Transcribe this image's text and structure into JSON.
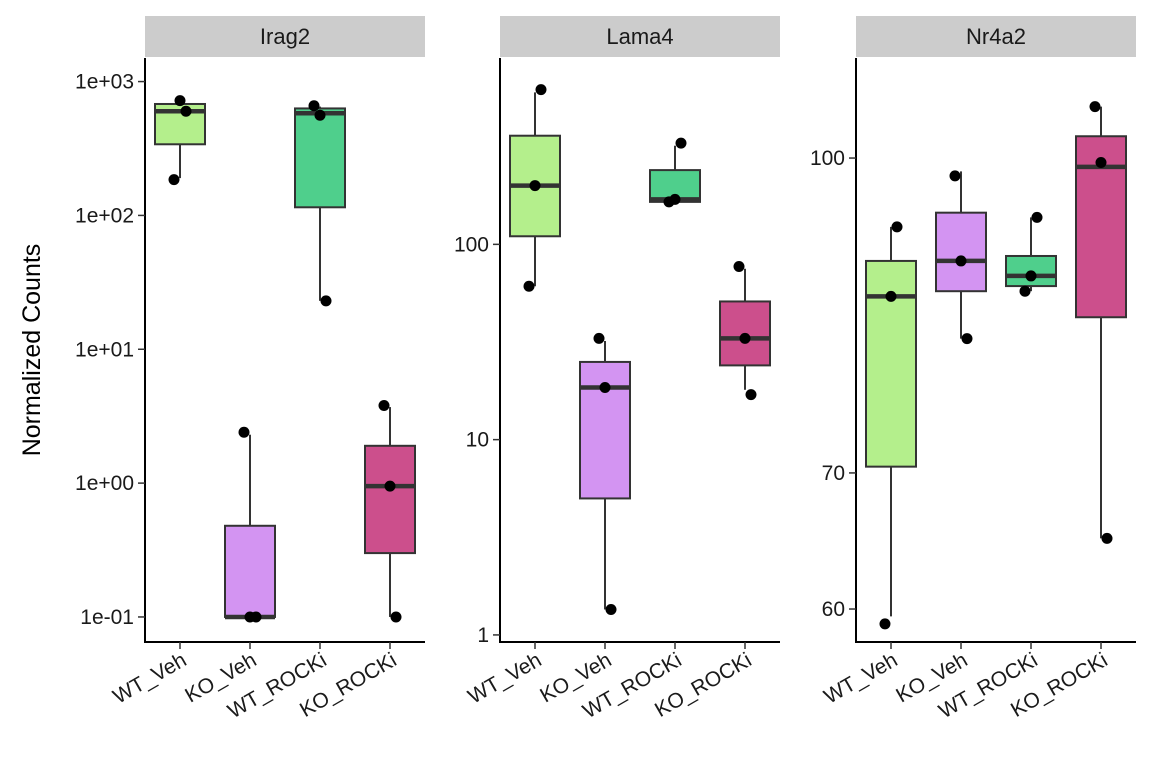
{
  "ylabel": "Normalized Counts",
  "categories": [
    "WT_Veh",
    "KO_Veh",
    "WT_ROCKi",
    "KO_ROCKi"
  ],
  "colors": {
    "WT_Veh": "#b4ef8c",
    "KO_Veh": "#d394f2",
    "WT_ROCKi": "#4fcf8c",
    "KO_ROCKi": "#cc4f8c",
    "strip": "#cccccc",
    "box_line": "#333333",
    "point": "#000000"
  },
  "chart_data": [
    {
      "type": "box",
      "title": "Irag2",
      "yscale": "log10",
      "ylim": [
        0.065,
        1500
      ],
      "yticks": [
        0.1,
        1,
        10,
        100,
        1000
      ],
      "yticklabels": [
        "1e-01",
        "1e+00",
        "1e+01",
        "1e+02",
        "1e+03"
      ],
      "groups": [
        {
          "name": "WT_Veh",
          "lower": 190,
          "q1": 340,
          "median": 600,
          "q3": 680,
          "upper": 720,
          "points": [
            600,
            720,
            185
          ]
        },
        {
          "name": "KO_Veh",
          "lower": 0.1,
          "q1": 0.1,
          "median": 0.1,
          "q3": 0.48,
          "upper": 2.3,
          "points": [
            2.4,
            0.1,
            0.1
          ]
        },
        {
          "name": "WT_ROCKi",
          "lower": 23,
          "q1": 115,
          "median": 580,
          "q3": 630,
          "upper": 650,
          "points": [
            23,
            560,
            660
          ]
        },
        {
          "name": "KO_ROCKi",
          "lower": 0.1,
          "q1": 0.3,
          "median": 0.95,
          "q3": 1.9,
          "upper": 3.7,
          "points": [
            3.8,
            0.95,
            0.1
          ]
        }
      ]
    },
    {
      "type": "box",
      "title": "Lama4",
      "yscale": "log10",
      "ylim": [
        0.92,
        900
      ],
      "yticks": [
        1,
        10,
        100
      ],
      "yticklabels": [
        "1",
        "10",
        "100"
      ],
      "groups": [
        {
          "name": "WT_Veh",
          "lower": 61,
          "q1": 110,
          "median": 200,
          "q3": 360,
          "upper": 600,
          "points": [
            620,
            200,
            61
          ]
        },
        {
          "name": "KO_Veh",
          "lower": 1.35,
          "q1": 5,
          "median": 18.5,
          "q3": 25,
          "upper": 32,
          "points": [
            33,
            18.5,
            1.35
          ]
        },
        {
          "name": "WT_ROCKi",
          "lower": 165,
          "q1": 165,
          "median": 170,
          "q3": 240,
          "upper": 320,
          "points": [
            330,
            170,
            165
          ]
        },
        {
          "name": "KO_ROCKi",
          "lower": 18,
          "q1": 24,
          "median": 33,
          "q3": 51,
          "upper": 75,
          "points": [
            77,
            33,
            17
          ]
        }
      ]
    },
    {
      "type": "box",
      "title": "Nr4a2",
      "yscale": "log10",
      "ylim": [
        57.8,
        112
      ],
      "yticks": [
        60,
        70,
        100
      ],
      "yticklabels": [
        "60",
        "70",
        "100"
      ],
      "groups": [
        {
          "name": "WT_Veh",
          "lower": 59.5,
          "q1": 70.5,
          "median": 85.5,
          "q3": 89,
          "upper": 92.5,
          "points": [
            92.5,
            85.5,
            59
          ]
        },
        {
          "name": "KO_Veh",
          "lower": 81.5,
          "q1": 86,
          "median": 89,
          "q3": 94,
          "upper": 98.5,
          "points": [
            98,
            89,
            81.5
          ]
        },
        {
          "name": "WT_ROCKi",
          "lower": 86,
          "q1": 86.5,
          "median": 87.5,
          "q3": 89.5,
          "upper": 93.5,
          "points": [
            93.5,
            87.5,
            86
          ]
        },
        {
          "name": "KO_ROCKi",
          "lower": 65,
          "q1": 83.5,
          "median": 99,
          "q3": 102.5,
          "upper": 106,
          "points": [
            106,
            99.5,
            65
          ]
        }
      ]
    }
  ]
}
